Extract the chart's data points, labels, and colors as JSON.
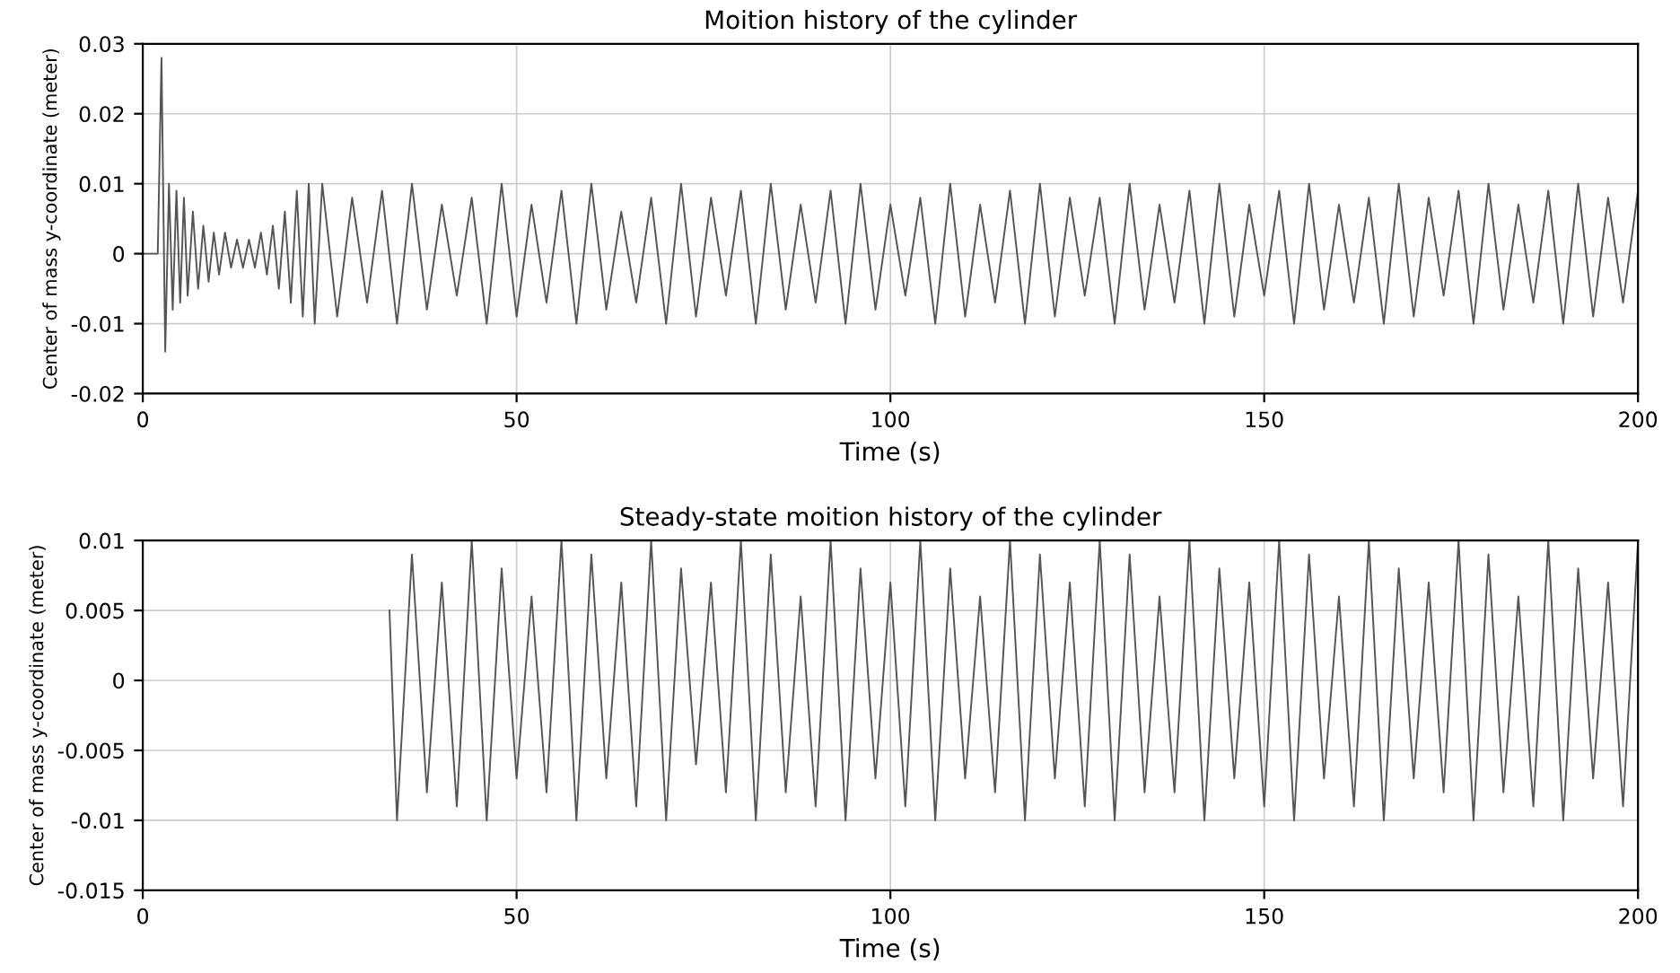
{
  "chart_data": [
    {
      "type": "line",
      "title": "Moition history of the cylinder",
      "xlabel": "Time (s)",
      "ylabel": "Center of mass y-coordinate (meter)",
      "xlim": [
        0,
        200
      ],
      "xticks": [
        0,
        50,
        100,
        150,
        200
      ],
      "ylim": [
        -0.02,
        0.03
      ],
      "yticks": [
        -0.02,
        -0.01,
        0,
        0.01,
        0.02,
        0.03
      ],
      "grid": true,
      "line_style": "solid",
      "series": [
        {
          "color": "#555555",
          "x": [
            0,
            2,
            2.5,
            3,
            3.5,
            4,
            4.5,
            5,
            5.5,
            6,
            6.7,
            7.4,
            8.1,
            8.8,
            9.5,
            10.2,
            11,
            11.8,
            12.6,
            13.4,
            14.2,
            15,
            15.8,
            16.6,
            17.4,
            18.2,
            19,
            19.8,
            20.6,
            21.4,
            22.2,
            23,
            24,
            26,
            28,
            30,
            32,
            34,
            36,
            38,
            40,
            42,
            44,
            46,
            48,
            50,
            52,
            54,
            56,
            58,
            60,
            62,
            64,
            66,
            68,
            70,
            72,
            74,
            76,
            78,
            80,
            82,
            84,
            86,
            88,
            90,
            92,
            94,
            96,
            98,
            100,
            102,
            104,
            106,
            108,
            110,
            112,
            114,
            116,
            118,
            120,
            122,
            124,
            126,
            128,
            130,
            132,
            134,
            136,
            138,
            140,
            142,
            144,
            146,
            148,
            150,
            152,
            154,
            156,
            158,
            160,
            162,
            164,
            166,
            168,
            170,
            172,
            174,
            176,
            178,
            180,
            182,
            184,
            186,
            188,
            190,
            192,
            194,
            196,
            198,
            200
          ],
          "values": [
            0,
            0,
            0.028,
            -0.014,
            0.01,
            -0.008,
            0.009,
            -0.007,
            0.008,
            -0.006,
            0.006,
            -0.005,
            0.004,
            -0.004,
            0.003,
            -0.003,
            0.003,
            -0.002,
            0.002,
            -0.002,
            0.002,
            -0.002,
            0.003,
            -0.003,
            0.004,
            -0.005,
            0.006,
            -0.007,
            0.009,
            -0.009,
            0.01,
            -0.01,
            0.01,
            -0.009,
            0.008,
            -0.007,
            0.009,
            -0.01,
            0.01,
            -0.008,
            0.007,
            -0.006,
            0.008,
            -0.01,
            0.01,
            -0.009,
            0.007,
            -0.007,
            0.009,
            -0.01,
            0.01,
            -0.008,
            0.006,
            -0.007,
            0.008,
            -0.01,
            0.01,
            -0.009,
            0.008,
            -0.006,
            0.009,
            -0.01,
            0.01,
            -0.008,
            0.007,
            -0.007,
            0.009,
            -0.01,
            0.01,
            -0.008,
            0.007,
            -0.006,
            0.008,
            -0.01,
            0.01,
            -0.009,
            0.007,
            -0.007,
            0.009,
            -0.01,
            0.01,
            -0.009,
            0.008,
            -0.006,
            0.008,
            -0.01,
            0.01,
            -0.008,
            0.007,
            -0.007,
            0.009,
            -0.01,
            0.01,
            -0.009,
            0.007,
            -0.006,
            0.009,
            -0.01,
            0.01,
            -0.008,
            0.007,
            -0.007,
            0.008,
            -0.01,
            0.01,
            -0.009,
            0.008,
            -0.006,
            0.009,
            -0.01,
            0.01,
            -0.008,
            0.007,
            -0.007,
            0.009,
            -0.01,
            0.01,
            -0.009,
            0.008,
            -0.007,
            0.009
          ]
        }
      ]
    },
    {
      "type": "line",
      "title": "Steady-state moition history of the cylinder",
      "xlabel": "Time (s)",
      "ylabel": "Center of mass y-coordinate (meter)",
      "xlim": [
        0,
        200
      ],
      "xticks": [
        0,
        50,
        100,
        150,
        200
      ],
      "ylim": [
        -0.015,
        0.01
      ],
      "yticks": [
        -0.015,
        -0.01,
        -0.005,
        0,
        0.005,
        0.01
      ],
      "grid": true,
      "line_style": "solid",
      "series": [
        {
          "color": "#555555",
          "x": [
            33,
            34,
            36,
            38,
            40,
            42,
            44,
            46,
            48,
            50,
            52,
            54,
            56,
            58,
            60,
            62,
            64,
            66,
            68,
            70,
            72,
            74,
            76,
            78,
            80,
            82,
            84,
            86,
            88,
            90,
            92,
            94,
            96,
            98,
            100,
            102,
            104,
            106,
            108,
            110,
            112,
            114,
            116,
            118,
            120,
            122,
            124,
            126,
            128,
            130,
            132,
            134,
            136,
            138,
            140,
            142,
            144,
            146,
            148,
            150,
            152,
            154,
            156,
            158,
            160,
            162,
            164,
            166,
            168,
            170,
            172,
            174,
            176,
            178,
            180,
            182,
            184,
            186,
            188,
            190,
            192,
            194,
            196,
            198,
            200
          ],
          "values": [
            0.005,
            -0.01,
            0.009,
            -0.008,
            0.007,
            -0.009,
            0.01,
            -0.01,
            0.008,
            -0.007,
            0.006,
            -0.008,
            0.01,
            -0.01,
            0.009,
            -0.007,
            0.007,
            -0.009,
            0.01,
            -0.01,
            0.008,
            -0.006,
            0.007,
            -0.008,
            0.01,
            -0.01,
            0.009,
            -0.008,
            0.006,
            -0.009,
            0.01,
            -0.01,
            0.008,
            -0.007,
            0.007,
            -0.009,
            0.01,
            -0.01,
            0.008,
            -0.007,
            0.006,
            -0.008,
            0.01,
            -0.01,
            0.009,
            -0.007,
            0.007,
            -0.009,
            0.01,
            -0.01,
            0.009,
            -0.008,
            0.006,
            -0.008,
            0.01,
            -0.01,
            0.008,
            -0.007,
            0.007,
            -0.009,
            0.01,
            -0.01,
            0.009,
            -0.007,
            0.006,
            -0.009,
            0.01,
            -0.01,
            0.008,
            -0.007,
            0.007,
            -0.008,
            0.01,
            -0.01,
            0.009,
            -0.008,
            0.006,
            -0.009,
            0.01,
            -0.01,
            0.008,
            -0.007,
            0.007,
            -0.009,
            0.01
          ]
        }
      ]
    }
  ]
}
